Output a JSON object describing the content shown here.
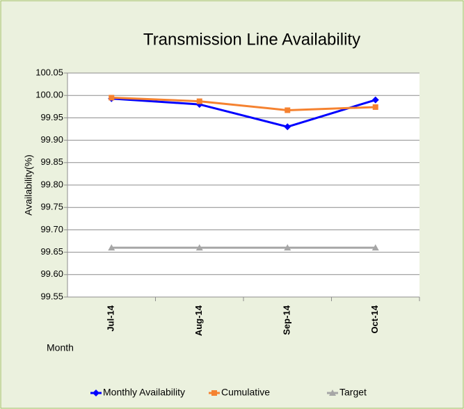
{
  "chart_data": {
    "type": "line",
    "title": "Transmission Line Availability",
    "y_label": "Availability(%)",
    "x_label": "Month",
    "categories": [
      "Jul-14",
      "Aug-14",
      "Sep-14",
      "Oct-14"
    ],
    "series": [
      {
        "name": "Monthly Availability",
        "color": "#0000ff",
        "marker": "diamond",
        "values": [
          99.993,
          99.98,
          99.93,
          99.99
        ]
      },
      {
        "name": "Cumulative",
        "color": "#f58230",
        "marker": "square",
        "values": [
          99.995,
          99.987,
          99.967,
          99.974
        ]
      },
      {
        "name": "Target",
        "color": "#a6a6a6",
        "marker": "triangle",
        "values": [
          99.66,
          99.66,
          99.66,
          99.66
        ]
      }
    ],
    "ylim": [
      99.55,
      100.05
    ],
    "yticks": [
      99.55,
      {
        "value": 99.6,
        "label": "99.60"
      },
      99.65,
      {
        "value": 99.7,
        "label": "99.70"
      },
      99.75,
      {
        "value": 99.8,
        "label": "99.80"
      },
      99.85,
      {
        "value": 99.9,
        "label": "99.90"
      },
      99.95,
      {
        "value": 100,
        "label": "100.00"
      },
      100.05
    ],
    "grid": true,
    "legend": "bottom"
  }
}
